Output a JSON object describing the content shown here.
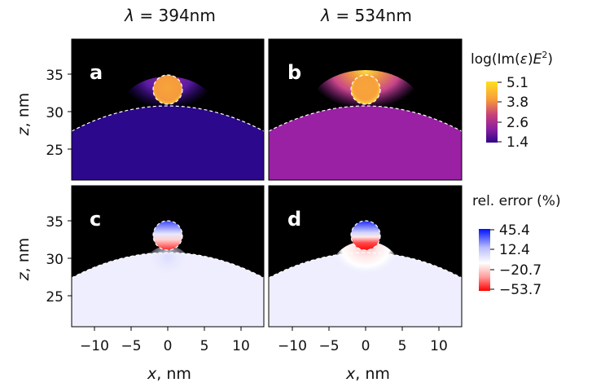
{
  "columns": [
    {
      "lambda_symbol": "λ",
      "lambda_text": " = 394nm"
    },
    {
      "lambda_symbol": "λ",
      "lambda_text": " = 534nm"
    }
  ],
  "panels": [
    {
      "letter": "a",
      "row": "top",
      "col": 0
    },
    {
      "letter": "b",
      "row": "top",
      "col": 1
    },
    {
      "letter": "c",
      "row": "bottom",
      "col": 0
    },
    {
      "letter": "d",
      "row": "bottom",
      "col": 1
    }
  ],
  "axes": {
    "xlabel_var": "x",
    "xlabel_unit": ", nm",
    "ylabel_var": "z",
    "ylabel_unit": ", nm",
    "x_ticks": [
      "−10",
      "−5",
      "0",
      "5",
      "10"
    ],
    "y_ticks": [
      "25",
      "30",
      "35"
    ]
  },
  "colorbar_top": {
    "label_prefix": "log(Im(",
    "label_eps": "ε",
    "label_mid": ")",
    "label_E": "E",
    "label_sup": "2",
    "label_end": ")",
    "ticks": [
      "5.1",
      "3.8",
      "2.6",
      "1.4"
    ],
    "colors": [
      "#ffe020",
      "#f79a3a",
      "#c63f7a",
      "#8a1fa0",
      "#30068a"
    ]
  },
  "colorbar_bottom": {
    "label": "rel. error (%)",
    "ticks": [
      "45.4",
      "12.4",
      "−20.7",
      "−53.7"
    ],
    "colors": [
      "#0010ff",
      "#b8bcff",
      "#ffffff",
      "#ff9a9a",
      "#ff0000"
    ]
  },
  "chart_data": [
    {
      "type": "heatmap",
      "panel": "a",
      "title": "λ = 394nm",
      "quantity": "log(Im(ε)E²)",
      "xlabel": "x, nm",
      "ylabel": "z, nm",
      "xlim": [
        -12.5,
        12.5
      ],
      "ylim": [
        20.5,
        39
      ],
      "color_range": [
        1.4,
        5.1
      ],
      "geometry": {
        "sphere_center": [
          0,
          33
        ],
        "sphere_radius": 2,
        "substrate_top": 30
      },
      "approx_values": {
        "sphere": 4.6,
        "substrate_near_top": 2.6,
        "substrate_bulk": 1.5
      }
    },
    {
      "type": "heatmap",
      "panel": "b",
      "title": "λ = 534nm",
      "quantity": "log(Im(ε)E²)",
      "xlabel": "x, nm",
      "ylabel": "z, nm",
      "xlim": [
        -12.5,
        12.5
      ],
      "ylim": [
        20.5,
        39
      ],
      "color_range": [
        1.4,
        5.1
      ],
      "geometry": {
        "sphere_center": [
          0,
          33
        ],
        "sphere_radius": 2,
        "substrate_top": 30
      },
      "approx_values": {
        "sphere": 4.6,
        "substrate_near_top": 4.5,
        "substrate_bulk": 2.6
      }
    },
    {
      "type": "heatmap",
      "panel": "c",
      "quantity": "rel. error (%)",
      "xlabel": "x, nm",
      "ylabel": "z, nm",
      "xlim": [
        -12.5,
        12.5
      ],
      "ylim": [
        20.5,
        39
      ],
      "color_range": [
        -53.7,
        45.4
      ],
      "geometry": {
        "sphere_center": [
          0,
          33
        ],
        "sphere_radius": 2,
        "substrate_top": 30
      },
      "approx_values": {
        "sphere_top": 45,
        "sphere_bottom": -50,
        "substrate": 5
      }
    },
    {
      "type": "heatmap",
      "panel": "d",
      "quantity": "rel. error (%)",
      "xlabel": "x, nm",
      "ylabel": "z, nm",
      "xlim": [
        -12.5,
        12.5
      ],
      "ylim": [
        20.5,
        39
      ],
      "color_range": [
        -53.7,
        45.4
      ],
      "geometry": {
        "sphere_center": [
          0,
          33
        ],
        "sphere_radius": 2,
        "substrate_top": 30
      },
      "approx_values": {
        "sphere_top": 45,
        "sphere_bottom": -54,
        "substrate_near_top": -10,
        "substrate": 5
      }
    }
  ]
}
